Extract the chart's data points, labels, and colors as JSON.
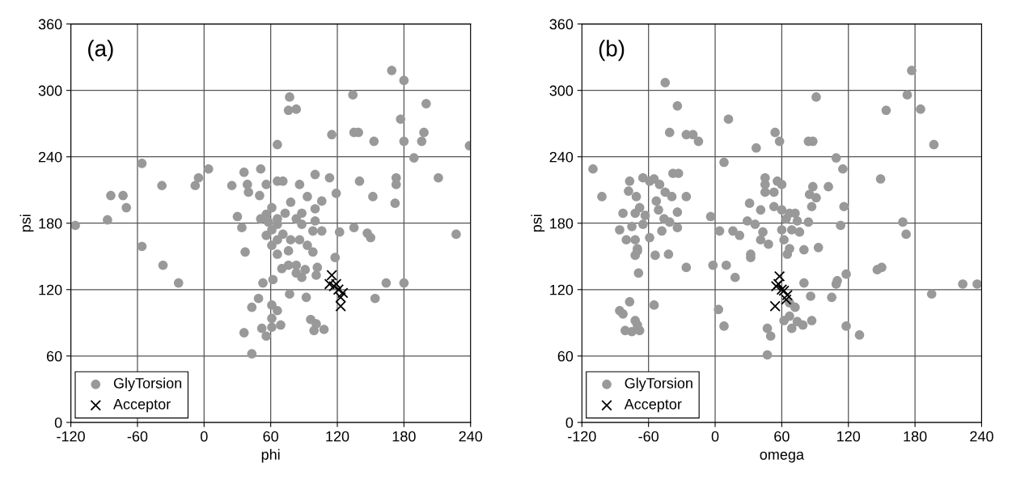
{
  "chart_data": [
    {
      "type": "scatter",
      "xlabel": "phi",
      "ylabel": "psi",
      "annotations": [
        "(a)"
      ],
      "xlim": [
        -120,
        240
      ],
      "xticks": [
        -120,
        -60,
        0,
        60,
        120,
        180,
        240
      ],
      "ylim": [
        0,
        360
      ],
      "yticks": [
        0,
        60,
        120,
        180,
        240,
        300,
        360
      ],
      "grid": true,
      "legend": "bottom left",
      "series": [
        {
          "name": "GlyTorsion",
          "color": "#999999",
          "marker": "circle",
          "x": [
            -116,
            -87,
            -84,
            -73,
            -70,
            -56,
            -56,
            -38,
            -37,
            -23,
            -8,
            -5,
            4,
            25,
            36,
            51,
            39,
            40,
            30,
            34,
            37,
            50,
            56,
            66,
            71,
            86,
            93,
            100,
            113,
            106,
            100,
            119,
            66,
            56,
            61,
            73,
            78,
            83,
            88,
            51,
            61,
            71,
            61,
            66,
            76,
            86,
            93,
            98,
            88,
            100,
            106,
            98,
            66,
            56,
            78,
            66,
            58,
            118,
            122,
            135,
            147,
            150,
            140,
            152,
            172,
            173,
            173,
            211,
            227,
            189,
            239,
            196,
            198,
            200,
            180,
            177,
            180,
            169,
            153,
            135,
            139,
            115,
            134,
            66,
            77,
            76,
            83,
            70,
            76,
            83,
            83,
            88,
            91,
            102,
            101,
            62,
            53,
            77,
            92,
            49,
            43,
            61,
            66,
            61,
            69,
            52,
            36,
            56,
            61,
            43,
            96,
            101,
            108,
            99,
            154,
            164,
            180
          ],
          "values": [
            178,
            183,
            205,
            205,
            194,
            234,
            159,
            214,
            142,
            126,
            214,
            221,
            229,
            214,
            226,
            229,
            215,
            208,
            186,
            176,
            154,
            205,
            215,
            218,
            218,
            215,
            204,
            224,
            221,
            200,
            193,
            207,
            179,
            188,
            194,
            189,
            199,
            184,
            189,
            184,
            174,
            170,
            160,
            152,
            155,
            165,
            160,
            154,
            179,
            182,
            173,
            173,
            184,
            169,
            165,
            165,
            181,
            149,
            172,
            176,
            171,
            167,
            218,
            204,
            198,
            221,
            215,
            221,
            170,
            239,
            250,
            254,
            262,
            288,
            254,
            274,
            309,
            318,
            254,
            262,
            262,
            260,
            296,
            251,
            294,
            282,
            283,
            139,
            142,
            142,
            135,
            131,
            138,
            140,
            133,
            129,
            126,
            116,
            113,
            112,
            104,
            106,
            101,
            94,
            88,
            85,
            81,
            78,
            86,
            62,
            93,
            89,
            84,
            83,
            112,
            126,
            126
          ]
        },
        {
          "name": "Acceptor",
          "color": "#000000",
          "marker": "cross",
          "x": [
            115,
            113,
            117,
            121,
            125,
            123,
            123,
            119
          ],
          "values": [
            133,
            125,
            123,
            120,
            117,
            113,
            105,
            125
          ]
        }
      ]
    },
    {
      "type": "scatter",
      "xlabel": "omega",
      "ylabel": "psi",
      "annotations": [
        "(b)"
      ],
      "xlim": [
        -120,
        240
      ],
      "xticks": [
        -120,
        -60,
        0,
        60,
        120,
        180,
        240
      ],
      "ylim": [
        0,
        360
      ],
      "yticks": [
        0,
        60,
        120,
        180,
        240,
        300,
        360
      ],
      "grid": true,
      "legend": "bottom left",
      "series": [
        {
          "name": "GlyTorsion",
          "color": "#999999",
          "marker": "circle",
          "x": [
            -110,
            -102,
            -45,
            -34,
            -41,
            -26,
            -20,
            -15,
            12,
            8,
            37,
            54,
            58,
            84,
            88,
            91,
            109,
            115,
            149,
            154,
            173,
            177,
            185,
            197,
            169,
            172,
            223,
            236,
            195,
            146,
            150,
            118,
            110,
            109,
            130,
            118,
            105,
            86,
            80,
            87,
            79,
            69,
            74,
            67,
            62,
            72,
            67,
            50,
            47,
            47,
            8,
            3,
            18,
            10,
            -2,
            32,
            32,
            -4,
            4,
            16,
            22,
            31,
            29,
            36,
            41,
            43,
            41,
            48,
            45,
            45,
            45,
            53,
            56,
            60,
            53,
            60,
            64,
            69,
            60,
            62,
            67,
            65,
            74,
            72,
            67,
            76,
            84,
            80,
            93,
            87,
            88,
            85,
            91,
            102,
            116,
            113,
            -77,
            -65,
            -59,
            -55,
            -50,
            -45,
            -39,
            -78,
            -71,
            -68,
            -83,
            -72,
            -63,
            -53,
            -51,
            -46,
            -41,
            -34,
            -26,
            -34,
            -33,
            -38,
            -86,
            -75,
            -65,
            -80,
            -72,
            -70,
            -59,
            -48,
            -70,
            -72,
            -54,
            -42,
            -26,
            -69,
            -77,
            -55,
            -86,
            -83,
            -72,
            -70,
            -81,
            -75,
            -68
          ],
          "values": [
            229,
            204,
            307,
            286,
            262,
            260,
            260,
            254,
            274,
            235,
            248,
            262,
            254,
            254,
            254,
            294,
            239,
            229,
            220,
            282,
            296,
            318,
            283,
            251,
            181,
            170,
            125,
            125,
            116,
            138,
            140,
            134,
            128,
            125,
            79,
            87,
            113,
            114,
            126,
            92,
            88,
            85,
            91,
            96,
            92,
            104,
            108,
            78,
            85,
            61,
            87,
            102,
            131,
            142,
            142,
            149,
            152,
            186,
            173,
            173,
            169,
            198,
            182,
            179,
            192,
            172,
            165,
            161,
            221,
            215,
            208,
            208,
            218,
            215,
            195,
            192,
            184,
            174,
            174,
            165,
            157,
            152,
            182,
            189,
            189,
            172,
            181,
            156,
            158,
            195,
            213,
            206,
            203,
            213,
            195,
            178,
            218,
            221,
            218,
            220,
            215,
            208,
            204,
            209,
            204,
            194,
            189,
            189,
            187,
            200,
            192,
            184,
            181,
            190,
            204,
            176,
            225,
            225,
            174,
            177,
            179,
            165,
            165,
            157,
            167,
            173,
            155,
            151,
            151,
            152,
            140,
            135,
            109,
            106,
            101,
            98,
            92,
            88,
            83,
            82,
            83
          ]
        },
        {
          "name": "Acceptor",
          "color": "#000000",
          "marker": "cross",
          "x": [
            58,
            55,
            60,
            65,
            62,
            54,
            57,
            64
          ],
          "values": [
            132,
            123,
            120,
            115,
            119,
            105,
            125,
            111
          ]
        }
      ]
    }
  ]
}
